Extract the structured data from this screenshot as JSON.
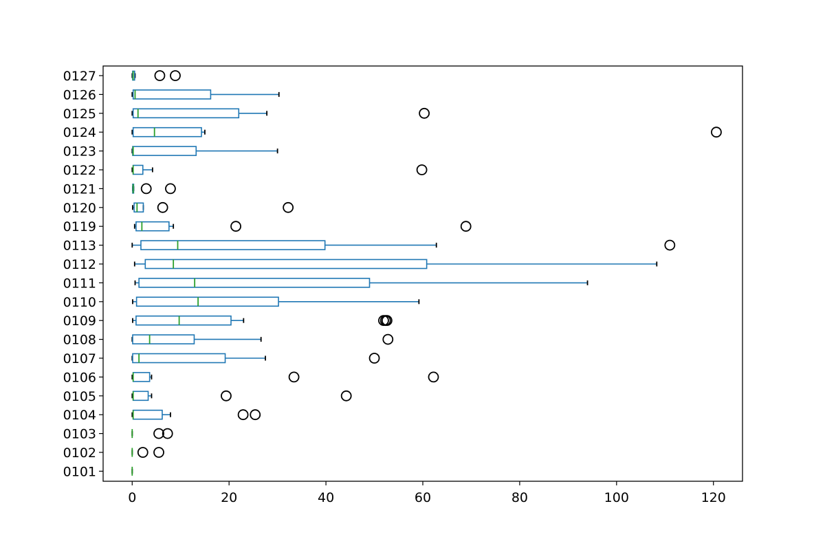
{
  "chart_data": {
    "type": "boxplot",
    "orientation": "horizontal",
    "title": "",
    "xlabel": "",
    "ylabel": "",
    "xlim": [
      -6,
      126
    ],
    "xticks": [
      0,
      20,
      40,
      60,
      80,
      100,
      120
    ],
    "grid": false,
    "colors": {
      "box": "#1f77b4",
      "median": "#2ca02c",
      "whisker": "#1f77b4",
      "cap": "#000000",
      "flier": "#000000",
      "axis": "#000000"
    },
    "categories": [
      "0101",
      "0102",
      "0103",
      "0104",
      "0105",
      "0106",
      "0107",
      "0108",
      "0109",
      "0110",
      "0111",
      "0112",
      "0113",
      "0119",
      "0120",
      "0121",
      "0122",
      "0123",
      "0124",
      "0125",
      "0126",
      "0127"
    ],
    "boxes": [
      {
        "label": "0101",
        "whislo": 0,
        "q1": 0,
        "med": 0,
        "q3": 0,
        "whishi": 0,
        "fliers": []
      },
      {
        "label": "0102",
        "whislo": 0,
        "q1": 0,
        "med": 0,
        "q3": 0,
        "whishi": 0,
        "fliers": [
          2.2,
          5.5
        ]
      },
      {
        "label": "0103",
        "whislo": 0,
        "q1": 0,
        "med": 0,
        "q3": 0,
        "whishi": 0,
        "fliers": [
          5.5,
          7.3
        ]
      },
      {
        "label": "0104",
        "whislo": 0,
        "q1": 0.2,
        "med": 0.2,
        "q3": 6.2,
        "whishi": 7.9,
        "fliers": [
          22.9,
          25.4
        ]
      },
      {
        "label": "0105",
        "whislo": 0,
        "q1": 0.2,
        "med": 0.2,
        "q3": 3.3,
        "whishi": 4.0,
        "fliers": [
          19.4,
          44.2
        ]
      },
      {
        "label": "0106",
        "whislo": 0,
        "q1": 0.2,
        "med": 0.2,
        "q3": 3.6,
        "whishi": 4.0,
        "fliers": [
          33.4,
          62.2
        ]
      },
      {
        "label": "0107",
        "whislo": 0,
        "q1": 0.1,
        "med": 1.4,
        "q3": 19.2,
        "whishi": 27.5,
        "fliers": [
          50.0
        ]
      },
      {
        "label": "0108",
        "whislo": 0,
        "q1": 0.1,
        "med": 3.6,
        "q3": 12.8,
        "whishi": 26.6,
        "fliers": [
          52.8
        ]
      },
      {
        "label": "0109",
        "whislo": 0.1,
        "q1": 0.8,
        "med": 9.7,
        "q3": 20.4,
        "whishi": 23.0,
        "fliers": [
          51.9,
          52.3,
          52.6
        ]
      },
      {
        "label": "0110",
        "whislo": 0.1,
        "q1": 0.9,
        "med": 13.6,
        "q3": 30.2,
        "whishi": 59.2,
        "fliers": []
      },
      {
        "label": "0111",
        "whislo": 0.6,
        "q1": 1.4,
        "med": 12.9,
        "q3": 49.0,
        "whishi": 94.0,
        "fliers": []
      },
      {
        "label": "0112",
        "whislo": 0.5,
        "q1": 2.7,
        "med": 8.5,
        "q3": 60.8,
        "whishi": 108.3,
        "fliers": []
      },
      {
        "label": "0113",
        "whislo": 0,
        "q1": 1.8,
        "med": 9.4,
        "q3": 39.8,
        "whishi": 62.8,
        "fliers": [
          111.0
        ]
      },
      {
        "label": "0119",
        "whislo": 0.5,
        "q1": 0.8,
        "med": 2.0,
        "q3": 7.6,
        "whishi": 8.5,
        "fliers": [
          21.4,
          68.9
        ]
      },
      {
        "label": "0120",
        "whislo": 0.1,
        "q1": 0.4,
        "med": 1.0,
        "q3": 2.3,
        "whishi": 2.3,
        "fliers": [
          6.3,
          32.2
        ]
      },
      {
        "label": "0121",
        "whislo": 0.1,
        "q1": 0.1,
        "med": 0.2,
        "q3": 0.3,
        "whishi": 0.3,
        "fliers": [
          2.9,
          7.9
        ]
      },
      {
        "label": "0122",
        "whislo": 0,
        "q1": 0.2,
        "med": 0.2,
        "q3": 2.2,
        "whishi": 4.2,
        "fliers": [
          59.8
        ]
      },
      {
        "label": "0123",
        "whislo": 0,
        "q1": 0.1,
        "med": 0.2,
        "q3": 13.2,
        "whishi": 30.0,
        "fliers": []
      },
      {
        "label": "0124",
        "whislo": 0,
        "q1": 0.2,
        "med": 4.6,
        "q3": 14.3,
        "whishi": 15.0,
        "fliers": [
          120.6
        ]
      },
      {
        "label": "0125",
        "whislo": 0,
        "q1": 0.2,
        "med": 1.2,
        "q3": 22.0,
        "whishi": 27.8,
        "fliers": [
          60.3
        ]
      },
      {
        "label": "0126",
        "whislo": 0,
        "q1": 0.2,
        "med": 0.6,
        "q3": 16.2,
        "whishi": 30.3,
        "fliers": []
      },
      {
        "label": "0127",
        "whislo": 0,
        "q1": 0.1,
        "med": 0.2,
        "q3": 0.5,
        "whishi": 0.6,
        "fliers": [
          5.7,
          8.9
        ]
      }
    ]
  }
}
